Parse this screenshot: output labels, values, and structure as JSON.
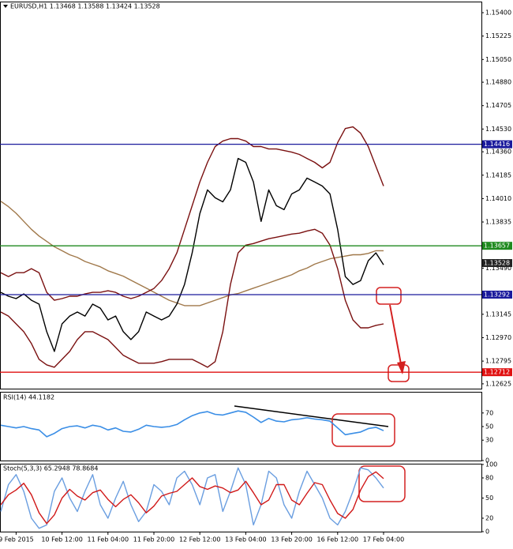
{
  "chart_data": [
    {
      "type": "line",
      "title": "EURUSD,H1  1.13468 1.13588 1.13424 1.13528",
      "categories": [
        null,
        null,
        "9 Feb 2015",
        null,
        null,
        null,
        null,
        null,
        "10 Feb 12:00",
        null,
        null,
        null,
        null,
        null,
        "11 Feb 04:00",
        null,
        null,
        null,
        null,
        null,
        "11 Feb 20:00",
        null,
        null,
        null,
        null,
        null,
        "12 Feb 12:00",
        null,
        null,
        null,
        null,
        null,
        "13 Feb 04:00",
        null,
        null,
        null,
        null,
        null,
        "13 Feb 20:00",
        null,
        null,
        null,
        null,
        null,
        "16 Feb 12:00",
        null,
        null,
        null,
        null,
        null,
        "17 Feb 04:00"
      ],
      "series": [
        {
          "color": "#a0784a",
          "values": [
            1.1399,
            1.1395,
            1.139,
            1.1384,
            1.1378,
            1.1373,
            1.1369,
            1.1365,
            1.1362,
            1.1359,
            1.1357,
            1.1354,
            1.1352,
            1.135,
            1.1347,
            1.1345,
            1.1343,
            1.134,
            1.1337,
            1.1334,
            1.1331,
            1.1328,
            1.1325,
            1.1323,
            1.1321,
            1.1321,
            1.1321,
            1.1323,
            1.1325,
            1.1327,
            1.1329,
            1.133,
            1.1332,
            1.1334,
            1.1336,
            1.1338,
            1.134,
            1.1342,
            1.1344,
            1.1347,
            1.1349,
            1.1352,
            1.1354,
            1.1356,
            1.1357,
            1.1358,
            1.1359,
            1.1359,
            1.136,
            1.1362,
            1.1362
          ]
        },
        {
          "color": "#7a1010",
          "values": [
            1.13456,
            1.13427,
            1.13456,
            1.13456,
            1.13486,
            1.13456,
            1.13309,
            1.1325,
            1.13262,
            1.1328,
            1.1328,
            1.13297,
            1.13309,
            1.13309,
            1.13321,
            1.13309,
            1.1328,
            1.13262,
            1.1328,
            1.13309,
            1.13338,
            1.13397,
            1.13486,
            1.13604,
            1.1378,
            1.13957,
            1.14134,
            1.14281,
            1.14399,
            1.1444,
            1.14458,
            1.14458,
            1.1444,
            1.14399,
            1.14399,
            1.14381,
            1.14381,
            1.14369,
            1.14357,
            1.1434,
            1.1431,
            1.14281,
            1.1424,
            1.14281,
            1.14428,
            1.14534,
            1.14546,
            1.14499,
            1.14399,
            1.14251,
            1.14104
          ]
        },
        {
          "color": "#7a1010",
          "values": [
            1.13162,
            1.13132,
            1.13073,
            1.13015,
            1.12926,
            1.12808,
            1.12767,
            1.12749,
            1.12808,
            1.12867,
            1.12956,
            1.13015,
            1.13015,
            1.12985,
            1.12956,
            1.12897,
            1.12838,
            1.12808,
            1.12779,
            1.12779,
            1.12779,
            1.12791,
            1.12808,
            1.12808,
            1.12808,
            1.12808,
            1.12779,
            1.12749,
            1.12791,
            1.13015,
            1.13368,
            1.13604,
            1.13662,
            1.13674,
            1.13692,
            1.1371,
            1.13721,
            1.13733,
            1.13745,
            1.13751,
            1.13768,
            1.1378,
            1.13751,
            1.13662,
            1.13486,
            1.1325,
            1.13103,
            1.13044,
            1.13044,
            1.13062,
            1.13073
          ]
        },
        {
          "color": "#000000",
          "values": [
            1.13309,
            1.1328,
            1.13262,
            1.13297,
            1.1325,
            1.13221,
            1.13015,
            1.12867,
            1.13073,
            1.13132,
            1.13162,
            1.13132,
            1.13221,
            1.13191,
            1.13103,
            1.13132,
            1.13015,
            1.12956,
            1.13015,
            1.13162,
            1.13132,
            1.13103,
            1.13132,
            1.13221,
            1.13368,
            1.13604,
            1.13898,
            1.14075,
            1.14016,
            1.13986,
            1.14075,
            1.1431,
            1.14281,
            1.14134,
            1.13839,
            1.14075,
            1.13957,
            1.13927,
            1.14045,
            1.14075,
            1.14163,
            1.14134,
            1.14104,
            1.14045,
            1.1378,
            1.13427,
            1.13368,
            1.13397,
            1.13545,
            1.13604,
            1.13515
          ]
        }
      ],
      "levels": [
        {
          "value": 1.14416,
          "color": "#1a1a9c"
        },
        {
          "value": 1.13657,
          "color": "#1f8a1f"
        },
        {
          "value": 1.13292,
          "color": "#1a1a9c"
        },
        {
          "value": 1.12712,
          "color": "#e01010"
        }
      ],
      "last_price": 1.13528,
      "ylim": [
        1.12589,
        1.15477
      ],
      "yticks": [
        {
          "value": 1.154,
          "label": "1.15400"
        },
        1.15225,
        {
          "value": 1.1505,
          "label": "1.15050"
        },
        {
          "value": 1.1488,
          "label": "1.14880"
        },
        1.14705,
        {
          "value": 1.1453,
          "label": "1.14530"
        },
        {
          "value": 1.1436,
          "label": "1.14360"
        },
        1.14185,
        {
          "value": 1.1401,
          "label": "1.14010"
        },
        1.13835,
        {
          "value": 1.1349,
          "label": "1.13490"
        },
        1.13145,
        {
          "value": 1.1297,
          "label": "1.12970"
        },
        1.12795,
        1.12625
      ]
    },
    {
      "type": "line",
      "title": "RSI(14) 44.1182",
      "color": "#3a8ee6",
      "values": [
        52,
        50,
        48,
        50,
        47,
        45,
        35,
        40,
        47,
        50,
        51,
        48,
        52,
        50,
        45,
        48,
        43,
        42,
        46,
        52,
        50,
        49,
        50,
        53,
        60,
        66,
        70,
        72,
        68,
        67,
        70,
        73,
        71,
        64,
        56,
        62,
        58,
        57,
        60,
        61,
        63,
        61,
        60,
        58,
        48,
        38,
        40,
        42,
        47,
        49,
        44
      ],
      "ylim": [
        0,
        100
      ],
      "yticks": [
        0,
        30,
        50,
        70
      ]
    },
    {
      "type": "line",
      "title": "Stoch(5,3,3) 65.2948 78.8684",
      "series": [
        {
          "color": "#6a9ee0",
          "values": [
            30,
            70,
            85,
            60,
            20,
            5,
            10,
            60,
            80,
            50,
            30,
            60,
            85,
            40,
            20,
            50,
            75,
            40,
            15,
            30,
            70,
            60,
            40,
            80,
            90,
            70,
            40,
            80,
            85,
            30,
            60,
            95,
            70,
            10,
            40,
            90,
            80,
            40,
            20,
            60,
            90,
            70,
            50,
            20,
            10,
            30,
            60,
            95,
            92,
            80,
            65
          ]
        },
        {
          "color": "#d01818",
          "values": [
            40,
            55,
            62,
            72,
            55,
            28,
            12,
            25,
            50,
            63,
            53,
            47,
            58,
            62,
            48,
            37,
            48,
            55,
            43,
            28,
            38,
            53,
            57,
            60,
            70,
            80,
            67,
            63,
            68,
            65,
            58,
            62,
            75,
            58,
            40,
            47,
            70,
            70,
            47,
            40,
            57,
            73,
            70,
            47,
            27,
            20,
            33,
            62,
            82,
            89,
            79
          ]
        }
      ],
      "ylim": [
        0,
        100
      ],
      "yticks": [
        0,
        20,
        50,
        80,
        100
      ]
    }
  ]
}
